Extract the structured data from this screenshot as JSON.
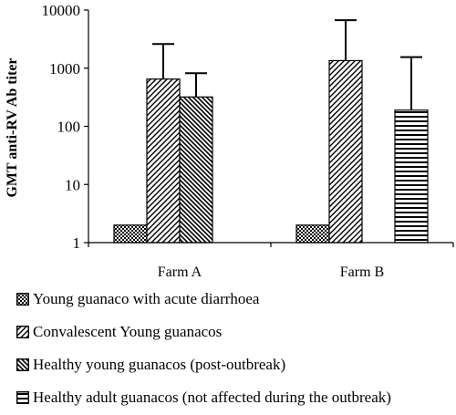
{
  "chart_data": {
    "type": "bar",
    "scale": "log",
    "ylabel": "GMT anti-RV Ab titer",
    "ylim": [
      1,
      10000
    ],
    "yticks": [
      "1",
      "10",
      "100",
      "1000",
      "10000"
    ],
    "categories": [
      "Farm A",
      "Farm B"
    ],
    "error_bars": "upper",
    "series": [
      {
        "name": "Young guanaco with acute diarrhoea",
        "pattern": "dense-checker",
        "values": [
          2,
          2
        ],
        "upper": [
          null,
          null
        ]
      },
      {
        "name": "Convalescent Young guanacos",
        "pattern": "diagonal-up",
        "values": [
          650,
          1350
        ],
        "upper": [
          2600,
          6700
        ]
      },
      {
        "name": "Healthy young guanacos (post-outbreak)",
        "pattern": "diagonal-down",
        "values": [
          320,
          null
        ],
        "upper": [
          820,
          null
        ]
      },
      {
        "name": "Healthy adult guanacos (not affected during the outbreak)",
        "pattern": "horizontal",
        "values": [
          null,
          190
        ],
        "upper": [
          null,
          1550
        ]
      }
    ]
  }
}
